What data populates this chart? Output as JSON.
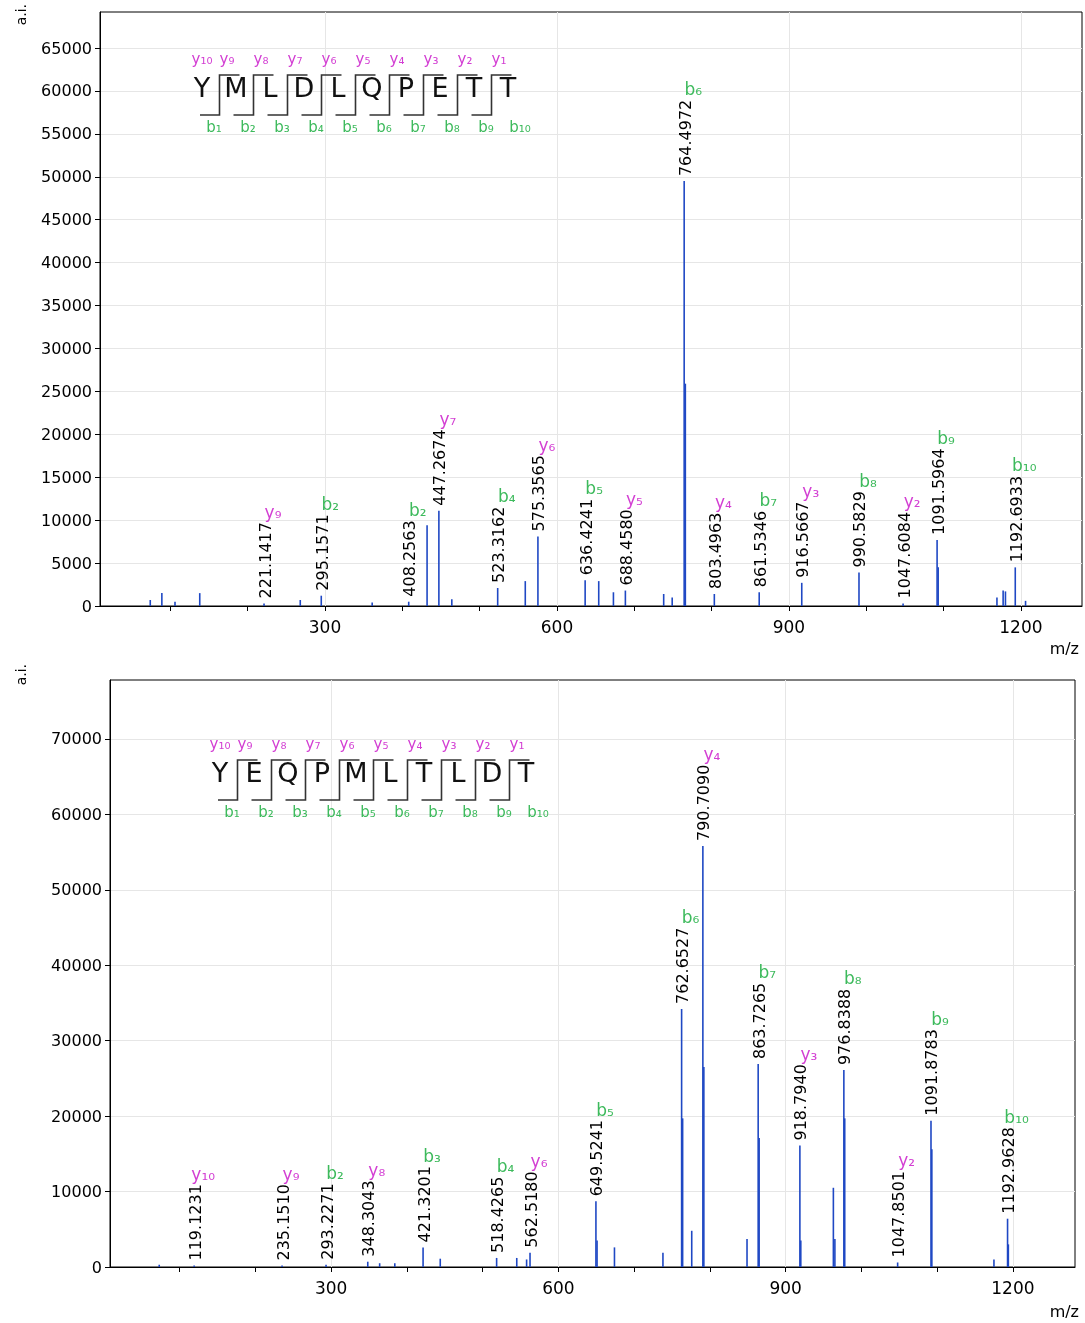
{
  "chart_data": [
    {
      "type": "bar",
      "xlabel": "m/z",
      "ylabel": "a.i.",
      "grid": true,
      "xlim": [
        9,
        1279
      ],
      "ylim": [
        0,
        69200
      ],
      "xticks": [
        {
          "value": 100,
          "label": null
        },
        {
          "value": 200,
          "label": null
        },
        300,
        {
          "value": 400,
          "label": null
        },
        {
          "value": 500,
          "label": null
        },
        600,
        {
          "value": 700,
          "label": null
        },
        {
          "value": 800,
          "label": null
        },
        900,
        {
          "value": 1000,
          "label": null
        },
        {
          "value": 1100,
          "label": null
        },
        1200
      ],
      "yticks": [
        0,
        5000,
        10000,
        15000,
        20000,
        25000,
        30000,
        35000,
        40000,
        45000,
        50000,
        55000,
        60000,
        65000
      ],
      "series": [
        {
          "color": "#1f48c4",
          "x": [
            74,
            89,
            106,
            138,
            221.1417,
            268,
            295.1571,
            361,
            408.2563,
            432,
            447.2674,
            464,
            523.3162,
            559,
            575.3565,
            636.4241,
            654,
            673,
            688.458,
            738,
            749,
            764.4972,
            766,
            803.4963,
            861.5346,
            916.5667,
            990.5829,
            1047.6084,
            1091.5964,
            1093,
            1169,
            1177,
            1180,
            1192.6933,
            1206
          ],
          "values": [
            700,
            1500,
            500,
            1500,
            300,
            700,
            1200,
            400,
            500,
            9400,
            11100,
            800,
            2100,
            2900,
            8100,
            3000,
            2900,
            1600,
            1800,
            1400,
            1000,
            49500,
            25900,
            1400,
            1600,
            2700,
            3900,
            300,
            7700,
            4500,
            1000,
            1800,
            1700,
            4500,
            600
          ]
        }
      ],
      "annotations": [
        "Y",
        "M",
        "L",
        "D",
        "L",
        "Q",
        "P",
        "E",
        "T",
        "T",
        "y₁₀",
        "y₉",
        "y₈",
        "y₇",
        "y₆",
        "y₅",
        "y₄",
        "y₃",
        "y₂",
        "y₁",
        "b₁",
        "b₂",
        "b₃",
        "b₄",
        "b₅",
        "b₆",
        "b₇",
        "b₈",
        "b₉",
        "b₁₀",
        {
          "text": "221.1417",
          "x": 221.1417,
          "y": 300
        },
        {
          "text": "295.1571",
          "x": 295.1571,
          "y": 1200
        },
        {
          "text": "408.2563",
          "x": 408.2563,
          "y": 500
        },
        {
          "text": "447.2674",
          "x": 447.2674,
          "y": 11100
        },
        {
          "text": "523.3162",
          "x": 523.3162,
          "y": 2100
        },
        {
          "text": "575.3565",
          "x": 575.3565,
          "y": 8100
        },
        {
          "text": "636.4241",
          "x": 636.4241,
          "y": 3000
        },
        {
          "text": "688.4580",
          "x": 688.458,
          "y": 1800
        },
        {
          "text": "764.4972",
          "x": 764.4972,
          "y": 49500
        },
        {
          "text": "803.4963",
          "x": 803.4963,
          "y": 1400
        },
        {
          "text": "861.5346",
          "x": 861.5346,
          "y": 1600
        },
        {
          "text": "916.5667",
          "x": 916.5667,
          "y": 2700
        },
        {
          "text": "990.5829",
          "x": 990.5829,
          "y": 3900
        },
        {
          "text": "1047.6084",
          "x": 1047.6084,
          "y": 300
        },
        {
          "text": "1091.5964",
          "x": 1091.5964,
          "y": 7700
        },
        {
          "text": "1192.6933",
          "x": 1192.6933,
          "y": 4500
        },
        "y₉",
        "b₂",
        "b₂",
        "y₇",
        "b₄",
        "y₆",
        "b₅",
        "y₅",
        "b₆",
        "y₄",
        "b₇",
        "y₃",
        "b₈",
        "y₂",
        "b₉",
        "b₁₀"
      ]
    },
    {
      "type": "bar",
      "xlabel": "m/z",
      "ylabel": "a.i.",
      "grid": true,
      "xlim": [
        8,
        1282
      ],
      "ylim": [
        0,
        77800
      ],
      "xticks": [
        {
          "value": 100,
          "label": null
        },
        {
          "value": 200,
          "label": null
        },
        300,
        {
          "value": 400,
          "label": null
        },
        {
          "value": 500,
          "label": null
        },
        600,
        {
          "value": 700,
          "label": null
        },
        {
          "value": 800,
          "label": null
        },
        900,
        {
          "value": 1000,
          "label": null
        },
        {
          "value": 1100,
          "label": null
        },
        1200
      ],
      "yticks": [
        0,
        10000,
        20000,
        30000,
        40000,
        50000,
        60000,
        70000
      ],
      "series": [
        {
          "color": "#1f48c4",
          "x": [
            73,
            119.1231,
            235.151,
            293.2271,
            348.3043,
            364,
            384,
            421.3201,
            444,
            518.4265,
            545,
            558,
            562.518,
            649.5241,
            651,
            674,
            738,
            762.6527,
            764,
            776,
            790.709,
            792,
            849,
            863.7265,
            865,
            918.794,
            920,
            963,
            965,
            976.8388,
            978,
            1047.8501,
            1091.8783,
            1093,
            1175,
            1192.9628,
            1194
          ],
          "values": [
            300,
            200,
            200,
            300,
            700,
            500,
            500,
            2600,
            1100,
            1200,
            1200,
            1000,
            1900,
            8700,
            3500,
            2600,
            1900,
            34200,
            19700,
            4800,
            55800,
            26500,
            3700,
            26900,
            17100,
            16100,
            3500,
            10500,
            3700,
            26100,
            19700,
            600,
            19400,
            15600,
            1000,
            6400,
            3000
          ]
        }
      ],
      "annotations": [
        "Y",
        "E",
        "Q",
        "P",
        "M",
        "L",
        "T",
        "L",
        "D",
        "T",
        "y₁₀",
        "y₉",
        "y₈",
        "y₇",
        "y₆",
        "y₅",
        "y₄",
        "y₃",
        "y₂",
        "y₁",
        "b₁",
        "b₂",
        "b₃",
        "b₄",
        "b₅",
        "b₆",
        "b₇",
        "b₈",
        "b₉",
        "b₁₀",
        {
          "text": "119.1231",
          "x": 119.1231,
          "y": 200
        },
        {
          "text": "235.1510",
          "x": 235.151,
          "y": 200
        },
        {
          "text": "293.2271",
          "x": 293.2271,
          "y": 300
        },
        {
          "text": "348.3043",
          "x": 348.3043,
          "y": 700
        },
        {
          "text": "421.3201",
          "x": 421.3201,
          "y": 2600
        },
        {
          "text": "518.4265",
          "x": 518.4265,
          "y": 1200
        },
        {
          "text": "562.5180",
          "x": 562.518,
          "y": 1900
        },
        {
          "text": "649.5241",
          "x": 649.5241,
          "y": 8700
        },
        {
          "text": "762.6527",
          "x": 762.6527,
          "y": 34200
        },
        {
          "text": "790.7090",
          "x": 790.709,
          "y": 55800
        },
        {
          "text": "863.7265",
          "x": 863.7265,
          "y": 26900
        },
        {
          "text": "918.7940",
          "x": 918.794,
          "y": 16100
        },
        {
          "text": "976.8388",
          "x": 976.8388,
          "y": 26100
        },
        {
          "text": "1047.8501",
          "x": 1047.8501,
          "y": 600
        },
        {
          "text": "1091.8783",
          "x": 1091.8783,
          "y": 19400
        },
        {
          "text": "1192.9628",
          "x": 1192.9628,
          "y": 6400
        },
        "y₁₀",
        "y₉",
        "b₂",
        "y₈",
        "b₃",
        "b₄",
        "y₆",
        "b₅",
        "b₆",
        "y₄",
        "b₇",
        "y₃",
        "b₈",
        "y₂",
        "b₉",
        "b₁₀"
      ]
    }
  ]
}
